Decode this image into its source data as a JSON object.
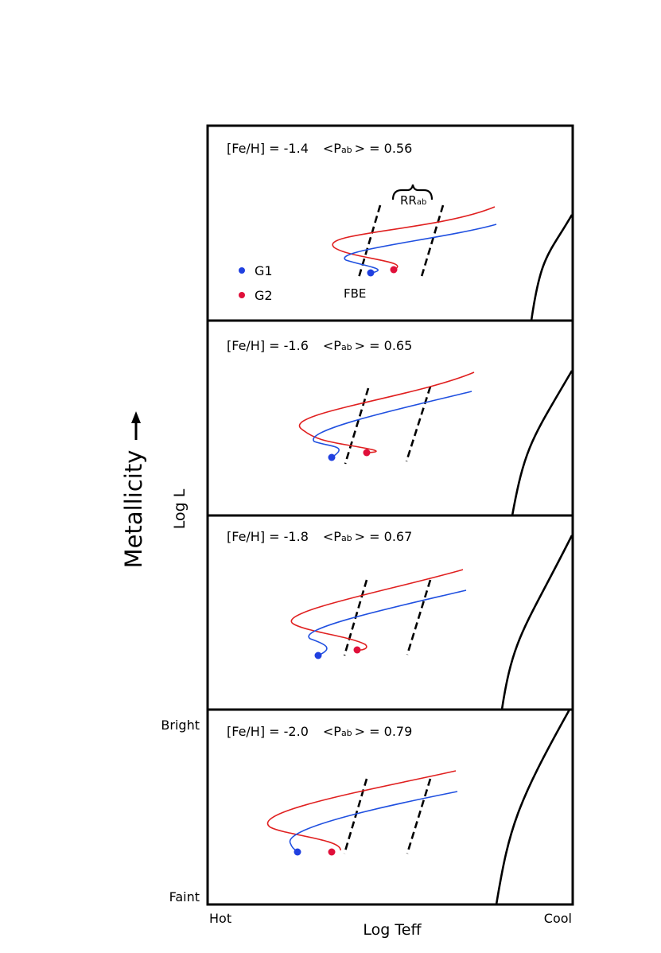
{
  "figure": {
    "y_axis_label": "Log L",
    "x_axis_label": "Log Teff",
    "side_label": "Metallicity",
    "bright_label": "Bright",
    "faint_label": "Faint",
    "hot_label": "Hot",
    "cool_label": "Cool"
  },
  "legend": {
    "g1": {
      "label": "G1",
      "color": "#2040e0"
    },
    "g2": {
      "label": "G2",
      "color": "#e0103a"
    }
  },
  "annotations": {
    "fbe_label": "FBE",
    "rr_main": "RR",
    "rr_sub": "ab"
  },
  "panels": [
    {
      "feh_text": "[Fe/H] = -1.4",
      "pab_prefix": "<P",
      "pab_sub": "ab",
      "pab_suffix": "> = 0.56"
    },
    {
      "feh_text": "[Fe/H] = -1.6",
      "pab_prefix": "<P",
      "pab_sub": "ab",
      "pab_suffix": "> = 0.65"
    },
    {
      "feh_text": "[Fe/H] = -1.8",
      "pab_prefix": "<P",
      "pab_sub": "ab",
      "pab_suffix": "> = 0.67"
    },
    {
      "feh_text": "[Fe/H] = -2.0",
      "pab_prefix": "<P",
      "pab_sub": "ab",
      "pab_suffix": "> = 0.79"
    }
  ],
  "colors": {
    "red_track": "#e02020",
    "blue_track": "#2050e0",
    "frame": "#000000"
  }
}
